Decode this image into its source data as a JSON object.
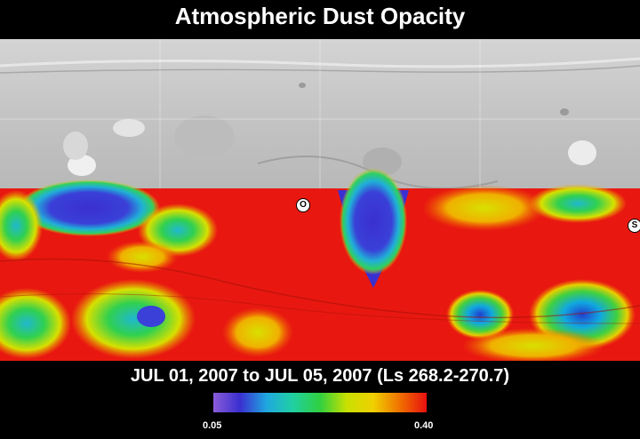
{
  "title": "Atmospheric Dust Opacity",
  "date_range": "JUL 01, 2007 to JUL 05, 2007 (Ls 268.2-270.7)",
  "markers": [
    {
      "label": "O"
    },
    {
      "label": "S"
    }
  ],
  "colorbar": {
    "min_label": "0.05",
    "max_label": "0.40",
    "min": 0.05,
    "max": 0.4,
    "colors": [
      "#8a5cd8",
      "#3a2fd0",
      "#1fa8e0",
      "#20d0a0",
      "#30d040",
      "#c8e000",
      "#f0d000",
      "#f07000",
      "#e81010"
    ]
  },
  "map": {
    "base_color": "#c8c8c8",
    "opacity_field_color": "#e81810"
  }
}
